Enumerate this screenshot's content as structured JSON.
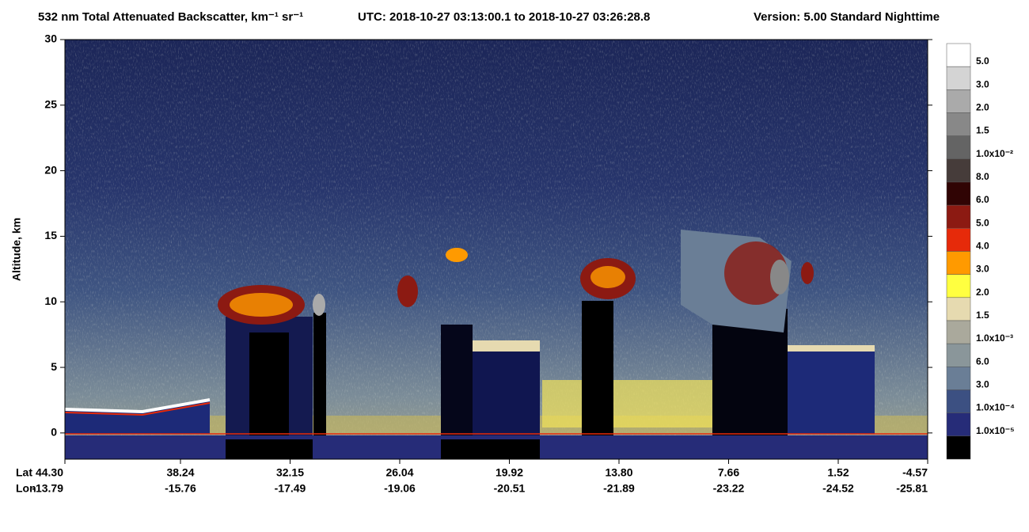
{
  "chart_data": {
    "type": "heatmap",
    "title": "532 nm Total Attenuated Backscatter, km⁻¹ sr⁻¹",
    "utc": "UTC:  2018-10-27 03:13:00.1  to  2018-10-27 03:26:28.8",
    "version": "Version: 5.00  Standard  Nighttime",
    "ylabel": "Altitude, km",
    "ylim": [
      -2,
      30
    ],
    "yticks": [
      0,
      5,
      10,
      15,
      20,
      25,
      30
    ],
    "x_row_labels": [
      "Lat",
      "Lon"
    ],
    "lat": [
      "44.30",
      "38.24",
      "32.15",
      "26.04",
      "19.92",
      "13.80",
      "7.66",
      "1.52",
      "-4.57"
    ],
    "lon": [
      "-13.79",
      "-15.76",
      "-17.49",
      "-19.06",
      "-20.51",
      "-21.89",
      "-23.22",
      "-24.52",
      "-25.81"
    ],
    "colorbar": {
      "labels": [
        "5.0",
        "3.0",
        "2.0",
        "1.5",
        "1.0x10⁻²",
        "8.0",
        "6.0",
        "5.0",
        "4.0",
        "3.0",
        "2.0",
        "1.5",
        "1.0x10⁻³",
        "6.0",
        "3.0",
        "1.0x10⁻⁴",
        "1.0x10⁻⁵"
      ],
      "colors": [
        "#ffffff",
        "#d4d4d4",
        "#aaaaaa",
        "#888888",
        "#646464",
        "#463c3a",
        "#300404",
        "#8c1a12",
        "#e62a0a",
        "#ff9a00",
        "#ffff40",
        "#e6dab0",
        "#aaa99c",
        "#8a969a",
        "#6a7e96",
        "#3c5082",
        "#262c78",
        "#000000"
      ]
    }
  }
}
